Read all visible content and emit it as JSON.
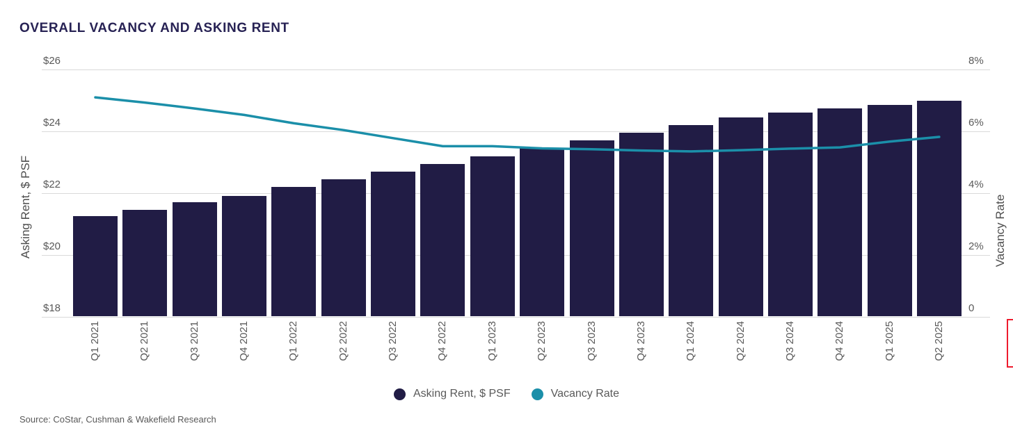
{
  "title": "OVERALL VACANCY AND ASKING RENT",
  "source": "Source: CoStar, Cushman & Wakefield Research",
  "colors": {
    "bar": "#211c45",
    "line": "#1b8fa9",
    "title": "#272254",
    "tick_text": "#595959",
    "gridline": "#d9d9d9",
    "red_fragment_border": "#ee1b2d"
  },
  "legend": [
    {
      "label": "Asking Rent, $ PSF",
      "color": "#211c45"
    },
    {
      "label": "Vacancy Rate",
      "color": "#1b8fa9"
    }
  ],
  "chart_data": {
    "type": "bar",
    "subtype": "bar+line dual axis",
    "title": "OVERALL VACANCY AND ASKING RENT",
    "categories": [
      "Q1 2021",
      "Q2 2021",
      "Q3 2021",
      "Q4 2021",
      "Q1 2022",
      "Q2 2022",
      "Q3 2022",
      "Q4 2022",
      "Q1 2023",
      "Q2 2023",
      "Q3 2023",
      "Q4 2023",
      "Q1 2024",
      "Q2 2024",
      "Q3 2024",
      "Q4 2024",
      "Q1 2025",
      "Q2 2025"
    ],
    "series": [
      {
        "name": "Asking Rent, $ PSF",
        "type": "bar",
        "axis": "left",
        "color": "#211c45",
        "values": [
          21.25,
          21.45,
          21.7,
          21.9,
          22.2,
          22.45,
          22.7,
          22.95,
          23.2,
          23.45,
          23.7,
          23.95,
          24.2,
          24.45,
          24.6,
          24.75,
          24.85,
          25.0
        ]
      },
      {
        "name": "Vacancy Rate",
        "type": "line",
        "axis": "right",
        "color": "#1b8fa9",
        "values": [
          7.1,
          6.93,
          6.74,
          6.53,
          6.26,
          6.04,
          5.78,
          5.52,
          5.52,
          5.45,
          5.42,
          5.38,
          5.35,
          5.39,
          5.44,
          5.48,
          5.67,
          5.82
        ]
      }
    ],
    "left_axis": {
      "label": "Asking Rent, $ PSF",
      "tick_labels_bottom_up": [
        "$18",
        "$20",
        "$22",
        "$24",
        "$26"
      ],
      "tick_values": [
        18,
        20,
        22,
        24,
        26
      ],
      "min": 18,
      "max": 26
    },
    "right_axis": {
      "label": "Vacancy Rate",
      "tick_labels_bottom_up": [
        "0",
        "2%",
        "4%",
        "6%",
        "8%"
      ],
      "tick_values": [
        0,
        2,
        4,
        6,
        8
      ],
      "min": 0,
      "max": 8
    },
    "grid": "horizontal only",
    "legend_position": "bottom center"
  }
}
